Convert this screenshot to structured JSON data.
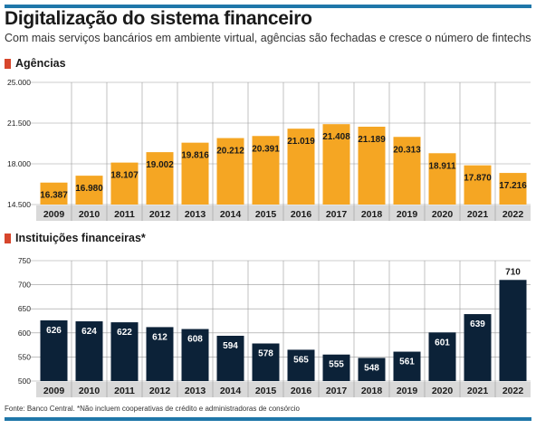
{
  "header": {
    "title": "Digitalização do sistema financeiro",
    "subtitle": "Com mais serviços bancários em ambiente virtual, agências são fechadas e cresce o número de fintechs"
  },
  "colors": {
    "accent": "#1f77a9",
    "marker": "#d7462c",
    "bar_orange": "#f5a623",
    "bar_navy": "#0c2238",
    "axis_band": "#d9d9d9"
  },
  "chart_data": [
    {
      "type": "bar",
      "title": "Agências",
      "categories": [
        "2009",
        "2010",
        "2011",
        "2012",
        "2013",
        "2014",
        "2015",
        "2016",
        "2017",
        "2018",
        "2019",
        "2020",
        "2021",
        "2022"
      ],
      "values": [
        16387,
        16980,
        18107,
        19002,
        19816,
        20212,
        20391,
        21019,
        21408,
        21189,
        20313,
        18911,
        17870,
        17216
      ],
      "value_labels": [
        "16.387",
        "16.980",
        "18.107",
        "19.002",
        "19.816",
        "20.212",
        "20.391",
        "21.019",
        "21.408",
        "21.189",
        "20.313",
        "18.911",
        "17.870",
        "17.216"
      ],
      "ylim": [
        14500,
        25000
      ],
      "yticks": [
        14500,
        18000,
        21500,
        25000
      ],
      "ytick_labels": [
        "14.500",
        "18.000",
        "21.500",
        "25.000"
      ],
      "grid": true,
      "color": "#f5a623",
      "xlabel": "",
      "ylabel": ""
    },
    {
      "type": "bar",
      "title": "Instituições financeiras*",
      "categories": [
        "2009",
        "2010",
        "2011",
        "2012",
        "2013",
        "2014",
        "2015",
        "2016",
        "2017",
        "2018",
        "2019",
        "2020",
        "2021",
        "2022"
      ],
      "values": [
        626,
        624,
        622,
        612,
        608,
        594,
        578,
        565,
        555,
        548,
        561,
        601,
        639,
        710
      ],
      "value_labels": [
        "626",
        "624",
        "622",
        "612",
        "608",
        "594",
        "578",
        "565",
        "555",
        "548",
        "561",
        "601",
        "639",
        "710"
      ],
      "ylim": [
        500,
        750
      ],
      "yticks": [
        500,
        550,
        600,
        650,
        700,
        750
      ],
      "ytick_labels": [
        "500",
        "550",
        "600",
        "650",
        "700",
        "750"
      ],
      "grid": true,
      "color": "#0c2238",
      "xlabel": "",
      "ylabel": ""
    }
  ],
  "footer": {
    "source": "Fonte: Banco Central. *Não incluem cooperativas de crédito e administradoras de consórcio"
  }
}
